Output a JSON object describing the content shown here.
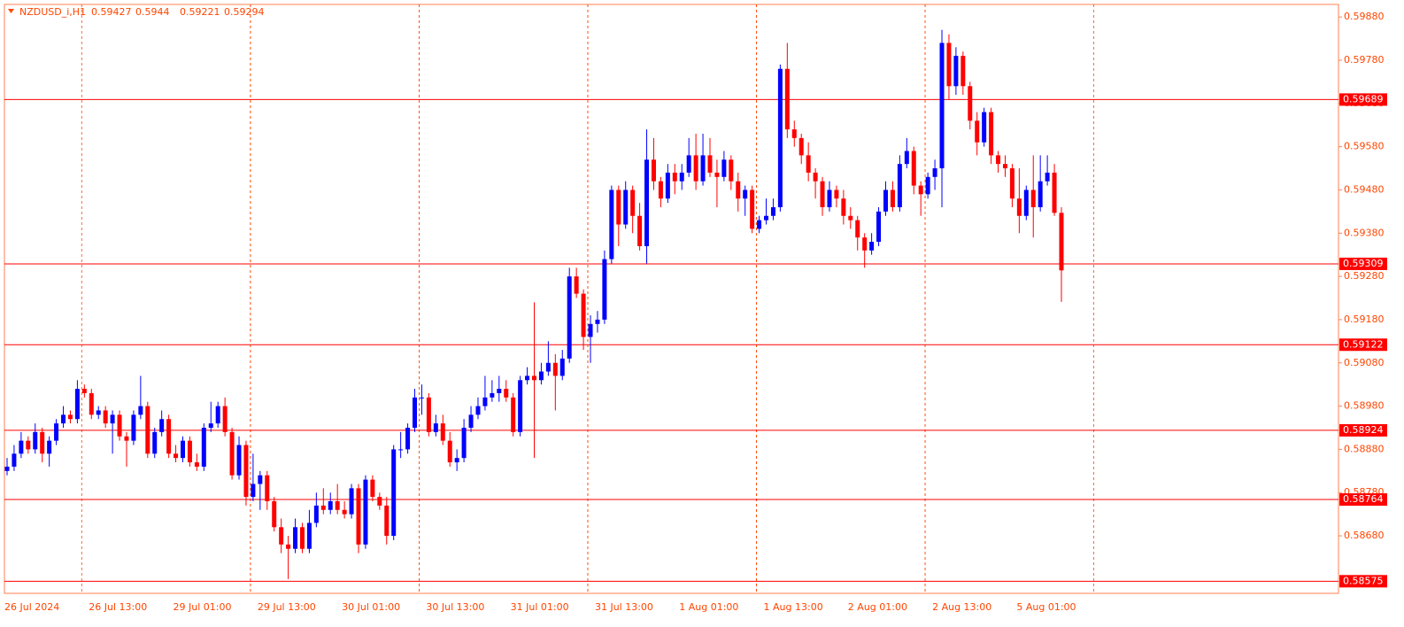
{
  "chart_data": {
    "type": "candlestick",
    "title": "NZDUSD_i,H1",
    "ylim": [
      0.58547,
      0.59909
    ],
    "yticks": [
      {
        "value": 0.5868,
        "label": "0.58680"
      },
      {
        "value": 0.5878,
        "label": "0.58780"
      },
      {
        "value": 0.5888,
        "label": "0.58880"
      },
      {
        "value": 0.5898,
        "label": "0.58980"
      },
      {
        "value": 0.5908,
        "label": "0.59080"
      },
      {
        "value": 0.5918,
        "label": "0.59180"
      },
      {
        "value": 0.5928,
        "label": "0.59280"
      },
      {
        "value": 0.5938,
        "label": "0.59380"
      },
      {
        "value": 0.5948,
        "label": "0.59480"
      },
      {
        "value": 0.5958,
        "label": "0.59580"
      },
      {
        "value": 0.5968,
        "label": "0.59680"
      },
      {
        "value": 0.5978,
        "label": "0.59780"
      },
      {
        "value": 0.5988,
        "label": "0.59880"
      }
    ],
    "levels": [
      0.59689,
      0.59309,
      0.59122,
      0.58924,
      0.58764,
      0.58575
    ],
    "level_color": "#ff0000",
    "up_color": "#0000ff",
    "down_color": "#ff0000",
    "grid": true,
    "categories": [
      "26 Jul 2024",
      null,
      null,
      null,
      null,
      null,
      null,
      null,
      null,
      null,
      null,
      null,
      "26 Jul 13:00",
      null,
      null,
      null,
      null,
      null,
      null,
      null,
      null,
      null,
      null,
      null,
      "29 Jul 01:00",
      null,
      null,
      null,
      null,
      null,
      null,
      null,
      null,
      null,
      null,
      null,
      "29 Jul 13:00",
      null,
      null,
      null,
      null,
      null,
      null,
      null,
      null,
      null,
      null,
      null,
      "30 Jul 01:00",
      null,
      null,
      null,
      null,
      null,
      null,
      null,
      null,
      null,
      null,
      null,
      "30 Jul 13:00",
      null,
      null,
      null,
      null,
      null,
      null,
      null,
      null,
      null,
      null,
      null,
      "31 Jul 01:00",
      null,
      null,
      null,
      null,
      null,
      null,
      null,
      null,
      null,
      null,
      null,
      "31 Jul 13:00",
      null,
      null,
      null,
      null,
      null,
      null,
      null,
      null,
      null,
      null,
      null,
      "1 Aug 01:00",
      null,
      null,
      null,
      null,
      null,
      null,
      null,
      null,
      null,
      null,
      null,
      "1 Aug 13:00",
      null,
      null,
      null,
      null,
      null,
      null,
      null,
      null,
      null,
      null,
      null,
      "2 Aug 01:00",
      null,
      null,
      null,
      null,
      null,
      null,
      null,
      null,
      null,
      null,
      null,
      "2 Aug 13:00",
      null,
      null,
      null,
      null,
      null,
      null,
      null,
      null,
      null,
      null,
      null,
      "5 Aug 01:00",
      null,
      null,
      null,
      null,
      null,
      null
    ],
    "ohlc": [
      [
        0.5883,
        0.5886,
        0.5882,
        0.5884
      ],
      [
        0.5884,
        0.5889,
        0.5883,
        0.5887
      ],
      [
        0.5887,
        0.5892,
        0.5886,
        0.589
      ],
      [
        0.589,
        0.5891,
        0.5887,
        0.5888
      ],
      [
        0.5888,
        0.5894,
        0.5887,
        0.5892
      ],
      [
        0.5892,
        0.5893,
        0.5885,
        0.5887
      ],
      [
        0.5887,
        0.5891,
        0.5884,
        0.589
      ],
      [
        0.589,
        0.5895,
        0.5889,
        0.5894
      ],
      [
        0.5894,
        0.5898,
        0.5893,
        0.5896
      ],
      [
        0.5896,
        0.5897,
        0.5894,
        0.5895
      ],
      [
        0.5895,
        0.5904,
        0.5894,
        0.5902
      ],
      [
        0.5902,
        0.5903,
        0.59,
        0.5901
      ],
      [
        0.5901,
        0.5902,
        0.5895,
        0.5896
      ],
      [
        0.5896,
        0.5898,
        0.5895,
        0.5897
      ],
      [
        0.5897,
        0.5898,
        0.5893,
        0.5894
      ],
      [
        0.5894,
        0.5897,
        0.5887,
        0.5896
      ],
      [
        0.5896,
        0.5897,
        0.589,
        0.5891
      ],
      [
        0.5891,
        0.5892,
        0.5884,
        0.589
      ],
      [
        0.589,
        0.5897,
        0.5889,
        0.5896
      ],
      [
        0.5896,
        0.5905,
        0.5895,
        0.5898
      ],
      [
        0.5898,
        0.5899,
        0.5886,
        0.5887
      ],
      [
        0.5887,
        0.5893,
        0.5886,
        0.5892
      ],
      [
        0.5892,
        0.5897,
        0.5891,
        0.5895
      ],
      [
        0.5895,
        0.5896,
        0.5886,
        0.5887
      ],
      [
        0.5887,
        0.5889,
        0.5885,
        0.5886
      ],
      [
        0.5886,
        0.5891,
        0.5885,
        0.589
      ],
      [
        0.589,
        0.5891,
        0.5884,
        0.5885
      ],
      [
        0.5885,
        0.5887,
        0.5883,
        0.5884
      ],
      [
        0.5884,
        0.5894,
        0.5883,
        0.5893
      ],
      [
        0.5893,
        0.5899,
        0.5892,
        0.5894
      ],
      [
        0.5894,
        0.5899,
        0.5893,
        0.5898
      ],
      [
        0.5898,
        0.59,
        0.5891,
        0.5892
      ],
      [
        0.5892,
        0.5893,
        0.5881,
        0.5882
      ],
      [
        0.5882,
        0.5891,
        0.5881,
        0.5889
      ],
      [
        0.5889,
        0.589,
        0.5875,
        0.5877
      ],
      [
        0.5877,
        0.5887,
        0.5876,
        0.588
      ],
      [
        0.588,
        0.5883,
        0.5874,
        0.5882
      ],
      [
        0.5882,
        0.5883,
        0.5874,
        0.5876
      ],
      [
        0.5876,
        0.5877,
        0.5869,
        0.587
      ],
      [
        0.587,
        0.5872,
        0.5864,
        0.5866
      ],
      [
        0.5866,
        0.5868,
        0.5858,
        0.5865
      ],
      [
        0.5865,
        0.5872,
        0.5864,
        0.587
      ],
      [
        0.587,
        0.5871,
        0.5864,
        0.5865
      ],
      [
        0.5865,
        0.5874,
        0.5864,
        0.5871
      ],
      [
        0.5871,
        0.5878,
        0.587,
        0.5875
      ],
      [
        0.5875,
        0.5879,
        0.5873,
        0.5874
      ],
      [
        0.5874,
        0.5878,
        0.5873,
        0.5876
      ],
      [
        0.5876,
        0.588,
        0.5873,
        0.5874
      ],
      [
        0.5874,
        0.5876,
        0.5872,
        0.5873
      ],
      [
        0.5873,
        0.588,
        0.5872,
        0.5879
      ],
      [
        0.5879,
        0.588,
        0.5864,
        0.5866
      ],
      [
        0.5866,
        0.5882,
        0.5865,
        0.5881
      ],
      [
        0.5881,
        0.5882,
        0.5876,
        0.5877
      ],
      [
        0.5877,
        0.5878,
        0.5874,
        0.5875
      ],
      [
        0.5875,
        0.5877,
        0.5866,
        0.5868
      ],
      [
        0.5868,
        0.5889,
        0.5867,
        0.5888
      ],
      [
        0.5888,
        0.5892,
        0.5886,
        0.5888
      ],
      [
        0.5888,
        0.5894,
        0.5887,
        0.5893
      ],
      [
        0.5893,
        0.5902,
        0.5892,
        0.59
      ],
      [
        0.59,
        0.5903,
        0.5896,
        0.59
      ],
      [
        0.59,
        0.5901,
        0.5891,
        0.5892
      ],
      [
        0.5892,
        0.5896,
        0.5891,
        0.5894
      ],
      [
        0.5894,
        0.5896,
        0.5889,
        0.589
      ],
      [
        0.589,
        0.5892,
        0.5884,
        0.5885
      ],
      [
        0.5885,
        0.5888,
        0.5883,
        0.5886
      ],
      [
        0.5886,
        0.5895,
        0.5885,
        0.5893
      ],
      [
        0.5893,
        0.5898,
        0.5892,
        0.5896
      ],
      [
        0.5896,
        0.59,
        0.5895,
        0.5898
      ],
      [
        0.5898,
        0.5905,
        0.5897,
        0.59
      ],
      [
        0.59,
        0.5904,
        0.5899,
        0.5901
      ],
      [
        0.5901,
        0.5905,
        0.5899,
        0.5902
      ],
      [
        0.5902,
        0.5904,
        0.5899,
        0.59
      ],
      [
        0.59,
        0.5901,
        0.5891,
        0.5892
      ],
      [
        0.5892,
        0.5905,
        0.5891,
        0.5904
      ],
      [
        0.5904,
        0.5907,
        0.5903,
        0.5905
      ],
      [
        0.5905,
        0.5922,
        0.5886,
        0.5904
      ],
      [
        0.5904,
        0.5908,
        0.5903,
        0.5906
      ],
      [
        0.5906,
        0.5913,
        0.5905,
        0.5908
      ],
      [
        0.5908,
        0.591,
        0.5897,
        0.5905
      ],
      [
        0.5905,
        0.5911,
        0.5904,
        0.5909
      ],
      [
        0.5909,
        0.593,
        0.5908,
        0.5928
      ],
      [
        0.5928,
        0.593,
        0.5923,
        0.5924
      ],
      [
        0.5924,
        0.5925,
        0.5911,
        0.5914
      ],
      [
        0.5914,
        0.5919,
        0.5908,
        0.5917
      ],
      [
        0.5917,
        0.592,
        0.5915,
        0.5918
      ],
      [
        0.5918,
        0.5934,
        0.5917,
        0.5932
      ],
      [
        0.5932,
        0.5949,
        0.5931,
        0.5948
      ],
      [
        0.5948,
        0.5949,
        0.5935,
        0.594
      ],
      [
        0.594,
        0.595,
        0.5939,
        0.5948
      ],
      [
        0.5948,
        0.5949,
        0.5938,
        0.5942
      ],
      [
        0.5942,
        0.5945,
        0.5934,
        0.5935
      ],
      [
        0.5935,
        0.5962,
        0.5931,
        0.5955
      ],
      [
        0.5955,
        0.596,
        0.5948,
        0.595
      ],
      [
        0.595,
        0.5951,
        0.5944,
        0.5946
      ],
      [
        0.5946,
        0.5954,
        0.5945,
        0.5952
      ],
      [
        0.5952,
        0.5954,
        0.5947,
        0.595
      ],
      [
        0.595,
        0.5954,
        0.5948,
        0.5952
      ],
      [
        0.5952,
        0.596,
        0.5951,
        0.5956
      ],
      [
        0.5956,
        0.5961,
        0.5948,
        0.595
      ],
      [
        0.595,
        0.5961,
        0.5949,
        0.5956
      ],
      [
        0.5956,
        0.596,
        0.5951,
        0.5952
      ],
      [
        0.5952,
        0.5955,
        0.5944,
        0.5951
      ],
      [
        0.5951,
        0.5957,
        0.595,
        0.5955
      ],
      [
        0.5955,
        0.5956,
        0.5948,
        0.595
      ],
      [
        0.595,
        0.5952,
        0.5943,
        0.5946
      ],
      [
        0.5946,
        0.5949,
        0.5942,
        0.5948
      ],
      [
        0.5948,
        0.5949,
        0.5938,
        0.5939
      ],
      [
        0.5939,
        0.5942,
        0.5938,
        0.5941
      ],
      [
        0.5941,
        0.5946,
        0.594,
        0.5942
      ],
      [
        0.5942,
        0.5946,
        0.5941,
        0.5944
      ],
      [
        0.5944,
        0.5977,
        0.5943,
        0.5976
      ],
      [
        0.5976,
        0.5982,
        0.596,
        0.5962
      ],
      [
        0.5962,
        0.5964,
        0.5958,
        0.596
      ],
      [
        0.596,
        0.5961,
        0.5954,
        0.5956
      ],
      [
        0.5956,
        0.5959,
        0.595,
        0.5952
      ],
      [
        0.5952,
        0.5953,
        0.5946,
        0.595
      ],
      [
        0.595,
        0.5951,
        0.5942,
        0.5944
      ],
      [
        0.5944,
        0.595,
        0.5943,
        0.5948
      ],
      [
        0.5948,
        0.5949,
        0.5944,
        0.5946
      ],
      [
        0.5946,
        0.5948,
        0.594,
        0.5942
      ],
      [
        0.5942,
        0.5944,
        0.5939,
        0.5941
      ],
      [
        0.5941,
        0.5942,
        0.5934,
        0.5937
      ],
      [
        0.5937,
        0.5938,
        0.593,
        0.5934
      ],
      [
        0.5934,
        0.5938,
        0.5933,
        0.5936
      ],
      [
        0.5936,
        0.5944,
        0.5935,
        0.5943
      ],
      [
        0.5943,
        0.595,
        0.5942,
        0.5948
      ],
      [
        0.5948,
        0.595,
        0.5943,
        0.5944
      ],
      [
        0.5944,
        0.5956,
        0.5943,
        0.5954
      ],
      [
        0.5954,
        0.596,
        0.5953,
        0.5957
      ],
      [
        0.5957,
        0.5958,
        0.5947,
        0.5949
      ],
      [
        0.5949,
        0.595,
        0.5942,
        0.5947
      ],
      [
        0.5947,
        0.5952,
        0.5946,
        0.5951
      ],
      [
        0.5951,
        0.5955,
        0.5948,
        0.5953
      ],
      [
        0.5953,
        0.5985,
        0.5944,
        0.5982
      ],
      [
        0.5982,
        0.5984,
        0.5969,
        0.5972
      ],
      [
        0.5972,
        0.5981,
        0.597,
        0.5979
      ],
      [
        0.5979,
        0.598,
        0.597,
        0.5972
      ],
      [
        0.5972,
        0.5973,
        0.5962,
        0.5964
      ],
      [
        0.5964,
        0.5966,
        0.5956,
        0.5959
      ],
      [
        0.5959,
        0.5967,
        0.5958,
        0.5966
      ],
      [
        0.5966,
        0.5967,
        0.5954,
        0.5956
      ],
      [
        0.5956,
        0.5957,
        0.5952,
        0.5954
      ],
      [
        0.5954,
        0.5956,
        0.5951,
        0.5953
      ],
      [
        0.5953,
        0.5954,
        0.5944,
        0.5946
      ],
      [
        0.5946,
        0.5953,
        0.5938,
        0.5942
      ],
      [
        0.5942,
        0.5949,
        0.5941,
        0.5948
      ],
      [
        0.5948,
        0.5956,
        0.5937,
        0.5944
      ],
      [
        0.5944,
        0.5956,
        0.5943,
        0.595
      ],
      [
        0.595,
        0.5956,
        0.5949,
        0.5952
      ],
      [
        0.5952,
        0.5954,
        0.5942,
        0.59427
      ],
      [
        0.59427,
        0.5944,
        0.59221,
        0.59294
      ]
    ]
  }
}
